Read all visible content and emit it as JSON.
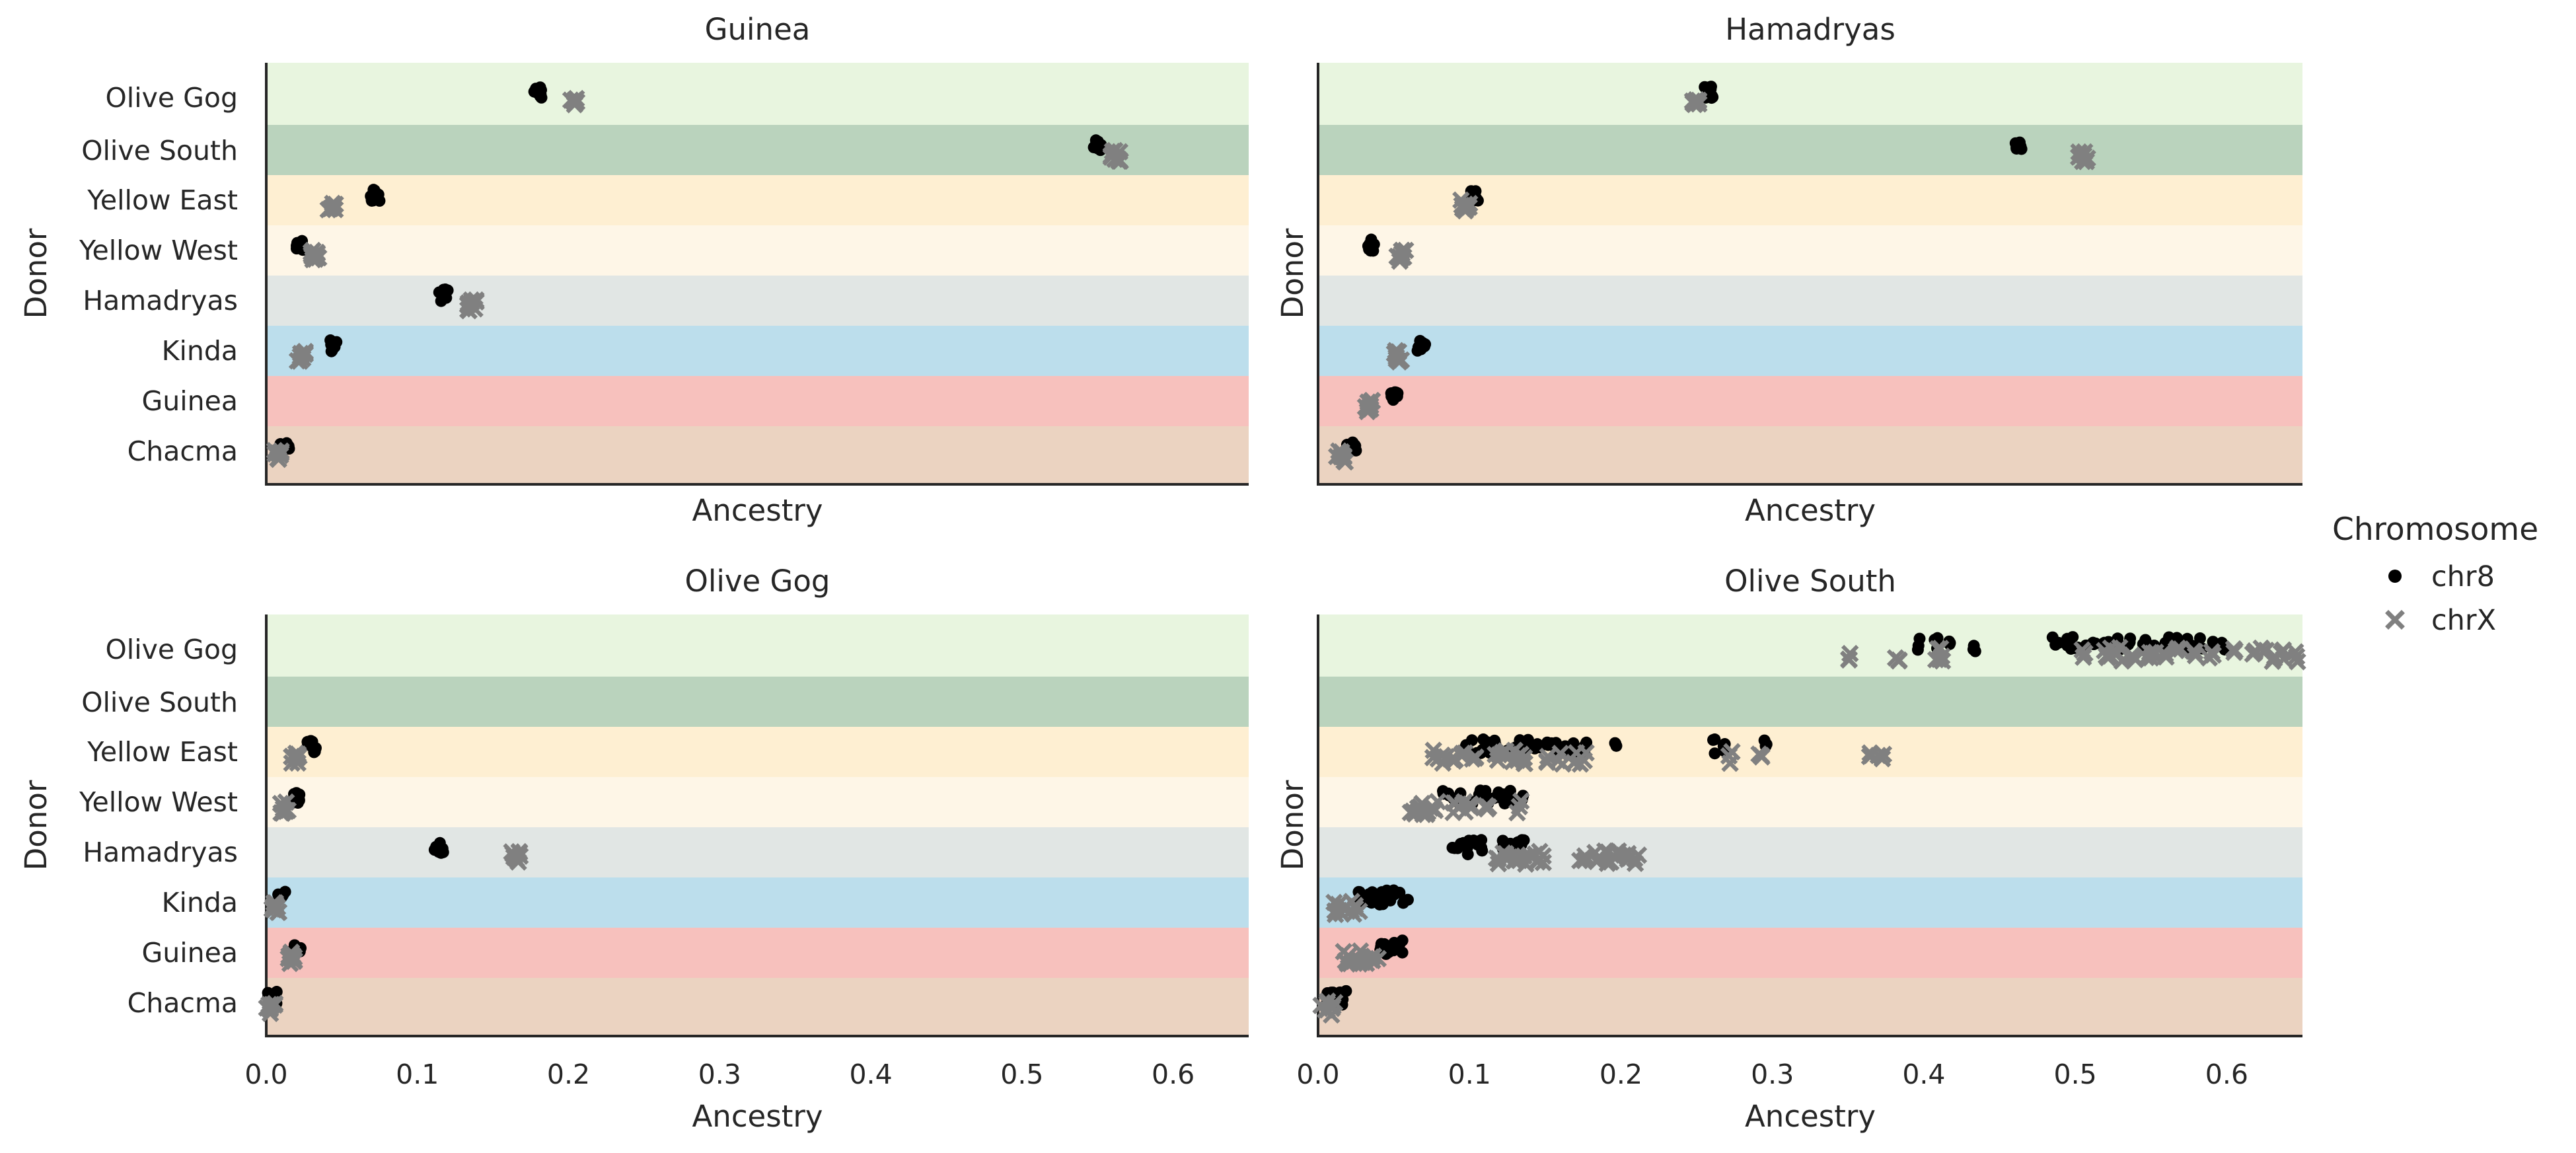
{
  "chart_data": [
    {
      "type": "scatter",
      "title": "Guinea",
      "xlabel": "Ancestry",
      "ylabel": "Donor",
      "xlim": [
        0,
        0.65
      ],
      "xticks_shown": false,
      "categories": [
        "Olive Gog",
        "Olive South",
        "Yellow East",
        "Yellow West",
        "Hamadryas",
        "Kinda",
        "Guinea",
        "Chacma"
      ],
      "series": [
        {
          "name": "chr8",
          "values": [
            0.18,
            0.55,
            0.072,
            0.023,
            0.117,
            0.044,
            null,
            0.012
          ]
        },
        {
          "name": "chrX",
          "values": [
            0.203,
            0.562,
            0.043,
            0.032,
            0.136,
            0.023,
            null,
            0.007
          ]
        }
      ]
    },
    {
      "type": "scatter",
      "title": "Hamadryas",
      "xlabel": "Ancestry",
      "ylabel": "Donor",
      "xlim": [
        0,
        0.65
      ],
      "xticks_shown": false,
      "categories": [
        "Olive Gog",
        "Olive South",
        "Yellow East",
        "Yellow West",
        "Hamadryas",
        "Kinda",
        "Guinea",
        "Chacma"
      ],
      "series": [
        {
          "name": "chr8",
          "values": [
            0.258,
            0.462,
            0.103,
            0.035,
            null,
            0.068,
            0.05,
            0.022
          ]
        },
        {
          "name": "chrX",
          "values": [
            0.25,
            0.505,
            0.097,
            0.055,
            null,
            0.052,
            0.033,
            0.015
          ]
        }
      ]
    },
    {
      "type": "scatter",
      "title": "Olive Gog",
      "xlabel": "Ancestry",
      "ylabel": "Donor",
      "xlim": [
        0,
        0.65
      ],
      "xticks": [
        0.0,
        0.1,
        0.2,
        0.3,
        0.4,
        0.5,
        0.6
      ],
      "xtick_labels": [
        "0.0",
        "0.1",
        "0.2",
        "0.3",
        "0.4",
        "0.5",
        "0.6"
      ],
      "categories": [
        "Olive Gog",
        "Olive South",
        "Yellow East",
        "Yellow West",
        "Hamadryas",
        "Kinda",
        "Guinea",
        "Chacma"
      ],
      "series": [
        {
          "name": "chr8",
          "values": [
            null,
            null,
            0.03,
            0.019,
            0.114,
            0.011,
            0.021,
            0.004
          ]
        },
        {
          "name": "chrX",
          "values": [
            null,
            null,
            0.019,
            0.012,
            0.165,
            0.006,
            0.016,
            0.003
          ]
        }
      ]
    },
    {
      "type": "scatter",
      "title": "Olive South",
      "xlabel": "Ancestry",
      "ylabel": "Donor",
      "xlim": [
        0,
        0.65
      ],
      "xticks": [
        0.0,
        0.1,
        0.2,
        0.3,
        0.4,
        0.5,
        0.6
      ],
      "xtick_labels": [
        "0.0",
        "0.1",
        "0.2",
        "0.3",
        "0.4",
        "0.5",
        "0.6"
      ],
      "categories": [
        "Olive Gog",
        "Olive South",
        "Yellow East",
        "Yellow West",
        "Hamadryas",
        "Kinda",
        "Guinea",
        "Chacma"
      ],
      "series": [
        {
          "name": "chr8",
          "points": {
            "0": [
              0.395,
              0.408,
              0.418,
              0.433,
              0.487,
              0.495,
              0.5,
              0.505,
              0.512,
              0.52,
              0.528,
              0.535,
              0.545,
              0.55,
              0.56,
              0.565,
              0.575,
              0.582,
              0.59,
              0.598
            ],
            "2": [
              0.098,
              0.103,
              0.108,
              0.112,
              0.118,
              0.124,
              0.132,
              0.137,
              0.145,
              0.152,
              0.157,
              0.162,
              0.168,
              0.176,
              0.198,
              0.262,
              0.268,
              0.295
            ],
            "3": [
              0.083,
              0.088,
              0.094,
              0.1,
              0.106,
              0.112,
              0.118,
              0.123,
              0.128,
              0.134
            ],
            "4": [
              0.09,
              0.095,
              0.099,
              0.104,
              0.108,
              0.12,
              0.126,
              0.13,
              0.134
            ],
            "5": [
              0.028,
              0.032,
              0.036,
              0.04,
              0.044,
              0.048,
              0.052,
              0.058
            ],
            "6": [
              0.04,
              0.044,
              0.048,
              0.052,
              0.056
            ],
            "7": [
              0.008,
              0.011,
              0.014,
              0.017
            ]
          }
        },
        {
          "name": "chrX",
          "points": {
            "0": [
              0.352,
              0.383,
              0.408,
              0.413,
              0.505,
              0.52,
              0.525,
              0.53,
              0.538,
              0.548,
              0.552,
              0.56,
              0.568,
              0.578,
              0.59,
              0.605,
              0.618,
              0.624,
              0.63,
              0.636,
              0.645
            ],
            "2": [
              0.078,
              0.084,
              0.09,
              0.096,
              0.102,
              0.118,
              0.123,
              0.128,
              0.133,
              0.138,
              0.15,
              0.16,
              0.17,
              0.175,
              0.272,
              0.291,
              0.365,
              0.372
            ],
            "3": [
              0.062,
              0.066,
              0.07,
              0.074,
              0.078,
              0.09,
              0.095,
              0.1,
              0.113,
              0.133
            ],
            "4": [
              0.118,
              0.123,
              0.128,
              0.133,
              0.138,
              0.143,
              0.148,
              0.175,
              0.185,
              0.19,
              0.195,
              0.2,
              0.205,
              0.21
            ],
            "5": [
              0.01,
              0.014,
              0.018,
              0.022,
              0.026
            ],
            "6": [
              0.018,
              0.022,
              0.026,
              0.03,
              0.034,
              0.038
            ],
            "7": [
              0.004,
              0.007,
              0.01
            ]
          }
        }
      ]
    }
  ],
  "band_colors": [
    "#e8f5df",
    "#bad3bd",
    "#feefd2",
    "#fef6e7",
    "#e1e6e4",
    "#bcdeec",
    "#f7c1bd",
    "#ebd3c1"
  ],
  "series_colors": {
    "chr8": "#000000",
    "chrX": "#808080"
  },
  "legend": {
    "title": "Chromosome",
    "items": [
      {
        "label": "chr8",
        "marker": "circle"
      },
      {
        "label": "chrX",
        "marker": "x"
      }
    ],
    "placement": "right"
  }
}
